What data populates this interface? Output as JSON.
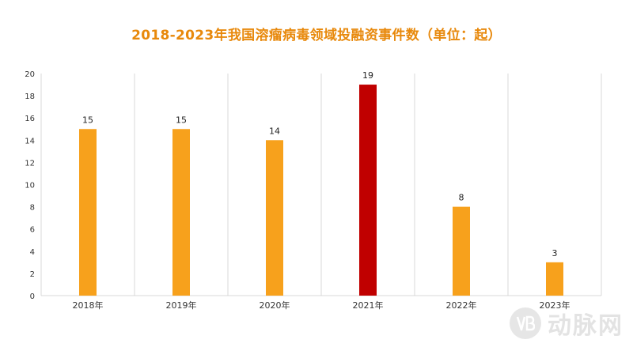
{
  "chart_data": {
    "type": "bar",
    "title": "2018-2023年我国溶瘤病毒领域投融资事件数（单位：起）",
    "xlabel": "",
    "ylabel": "",
    "categories": [
      "2018年",
      "2019年",
      "2020年",
      "2021年",
      "2022年",
      "2023年"
    ],
    "values": [
      15,
      15,
      14,
      19,
      8,
      3
    ],
    "data_labels": [
      "15",
      "15",
      "14",
      "19",
      "8",
      "3"
    ],
    "highlight_index": 3,
    "ylim": [
      0,
      20
    ],
    "yticks": [
      "0",
      "2",
      "4",
      "6",
      "8",
      "10",
      "12",
      "14",
      "16",
      "18",
      "20"
    ],
    "grid": "vertical",
    "legend": "none",
    "colors": {
      "bar": "#f7a11c",
      "highlight": "#c00000",
      "title": "#e8890c"
    }
  },
  "watermark": {
    "text": "动脉网",
    "icon": "vb-logo-icon"
  }
}
